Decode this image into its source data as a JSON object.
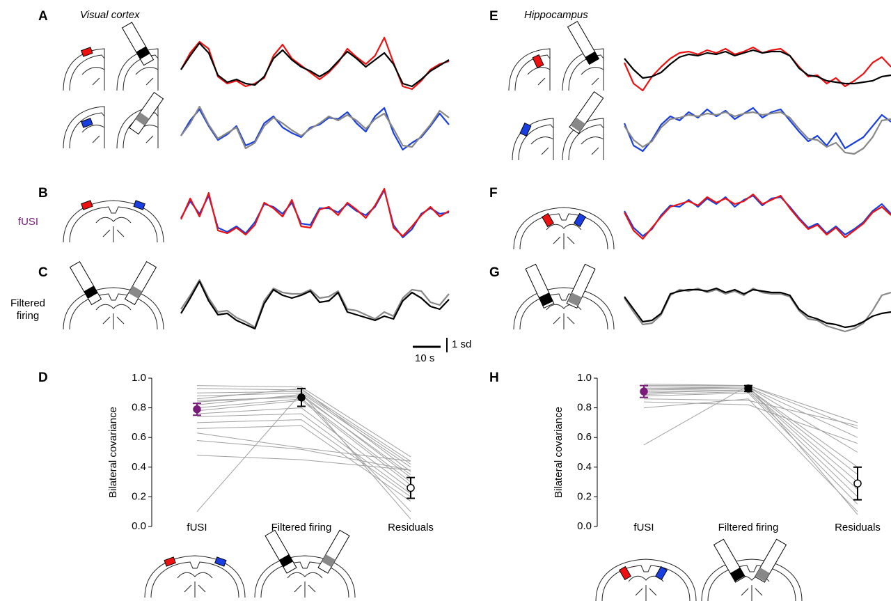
{
  "panel_labels": [
    "A",
    "B",
    "C",
    "D",
    "E",
    "F",
    "G",
    "H"
  ],
  "region_titles": [
    "Visual cortex",
    "Hippocampus"
  ],
  "row_labels": [
    "fUSI",
    "Filtered firing"
  ],
  "scale_bar": {
    "time": "10 s",
    "amplitude": "1 sd"
  },
  "traces": [
    [
      [
        {
          "color": "#ee1111",
          "values": [
            0,
            1.2,
            2,
            1.5,
            -0.5,
            -1,
            -0.8,
            -1.2,
            -1,
            -0.6,
            1,
            1.8,
            0.8,
            0.3,
            -0.2,
            -0.7,
            -0.2,
            0.5,
            1.5,
            0.9,
            0.4,
            1,
            2.3,
            0.5,
            -1.2,
            -1.4,
            -0.8,
            0,
            0.4,
            0.6
          ]
        },
        {
          "color": "#000000",
          "values": [
            0,
            1,
            1.9,
            1.2,
            -0.4,
            -0.9,
            -0.7,
            -1,
            -1.1,
            -0.5,
            0.8,
            1.4,
            0.7,
            0.2,
            -0.1,
            -0.5,
            -0.1,
            0.6,
            1.3,
            0.8,
            0.2,
            0.7,
            1.2,
            0.4,
            -1,
            -1.2,
            -0.7,
            -0.1,
            0.3,
            0.7
          ]
        }
      ],
      [
        {
          "color": "#1a3fe0",
          "values": [
            -0.5,
            0.6,
            1.4,
            0.2,
            -0.8,
            -0.4,
            0.2,
            -1.2,
            -0.9,
            0.4,
            0.9,
            0.1,
            -0.3,
            -0.6,
            0.1,
            0.3,
            0.8,
            0.7,
            1.2,
            0.4,
            -0.2,
            0.9,
            1.5,
            -0.3,
            -1.5,
            -1,
            -0.6,
            0.2,
            1.1,
            0.3
          ]
        },
        {
          "color": "#888888",
          "values": [
            -0.5,
            0.4,
            1.6,
            0.3,
            -0.7,
            -0.3,
            0.1,
            -1.4,
            -1,
            0.2,
            0.8,
            0.4,
            -0.1,
            -0.5,
            0,
            0.4,
            0.9,
            0.6,
            1,
            0.6,
            0,
            0.7,
            1.1,
            0,
            -1.2,
            -1.3,
            -0.5,
            0.3,
            1.3,
            0.8
          ]
        }
      ],
      [
        {
          "color": "#1a3fe0",
          "values": [
            0.1,
            1.3,
            0.4,
            1.7,
            -0.6,
            -0.9,
            -0.5,
            -1,
            -0.2,
            1.1,
            0.9,
            0.4,
            1.2,
            -0.3,
            -0.4,
            0.8,
            0.8,
            0.5,
            1.1,
            0.6,
            0.3,
            0.9,
            2.1,
            -0.4,
            -1.3,
            -0.7,
            0.4,
            0.8,
            0.4,
            0.5
          ]
        },
        {
          "color": "#ee1111",
          "values": [
            0,
            1.5,
            0.2,
            1.9,
            -0.8,
            -1,
            -0.6,
            -1.1,
            -0.4,
            1.2,
            0.8,
            0.2,
            1.4,
            -0.5,
            -0.6,
            0.7,
            0.9,
            0.3,
            1.2,
            0.7,
            0.1,
            1,
            2.2,
            -0.6,
            -1.2,
            -0.5,
            0.3,
            0.9,
            0.2,
            0.6
          ]
        }
      ],
      [
        {
          "color": "#888888",
          "values": [
            -0.2,
            0.8,
            1.9,
            0.6,
            -0.4,
            -0.3,
            -0.8,
            -1.1,
            -1.5,
            0.4,
            1.3,
            1,
            0.9,
            0.9,
            1.2,
            0.6,
            0.7,
            1.1,
            -0.2,
            -0.3,
            -0.6,
            -0.9,
            -0.4,
            -0.7,
            0.6,
            1.2,
            1.1,
            0.3,
            0.1,
            0.9
          ]
        },
        {
          "color": "#000000",
          "values": [
            -0.5,
            0.6,
            1.8,
            0.4,
            -0.6,
            -0.5,
            -1,
            -1.3,
            -1.6,
            0.2,
            1.2,
            0.8,
            0.6,
            0.8,
            1.1,
            0.3,
            0.4,
            1,
            -0.4,
            -0.6,
            -0.8,
            -1,
            -0.7,
            -0.9,
            0.4,
            1,
            0.6,
            0,
            -0.2,
            0.5
          ]
        }
      ]
    ],
    [
      [
        {
          "color": "#ee1111",
          "values": [
            0.5,
            -1,
            -1.5,
            -0.5,
            0.2,
            0.8,
            1.2,
            1.3,
            1.1,
            1.4,
            1.2,
            1.5,
            1.1,
            1.3,
            1.6,
            1.2,
            1.4,
            1.5,
            1,
            0.2,
            -0.5,
            -0.4,
            -1,
            -0.6,
            -1.2,
            -0.8,
            -0.3,
            0.5,
            0.9,
            0.2
          ]
        },
        {
          "color": "#000000",
          "values": [
            0.8,
            0,
            -0.6,
            -0.5,
            -0.2,
            0.4,
            0.9,
            1.1,
            1,
            1.2,
            1.1,
            1.3,
            1,
            1.2,
            1.4,
            1.2,
            1.3,
            1.3,
            1,
            0.1,
            -0.4,
            -0.5,
            -0.8,
            -0.9,
            -1,
            -1,
            -0.9,
            -0.8,
            -0.5,
            -0.4
          ]
        }
      ],
      [
        {
          "color": "#1a3fe0",
          "values": [
            0.4,
            -1.2,
            -1.6,
            -0.8,
            0.3,
            0.9,
            0.6,
            1.2,
            0.8,
            1.4,
            0.9,
            1.3,
            0.7,
            1.1,
            1.5,
            0.8,
            1.2,
            1.4,
            0.6,
            -0.2,
            -0.9,
            -0.5,
            -1.2,
            -0.3,
            -1.4,
            -1,
            -0.6,
            0.2,
            1,
            0.5
          ]
        },
        {
          "color": "#888888",
          "values": [
            0.2,
            -0.8,
            -1.3,
            -0.9,
            0.1,
            0.7,
            0.8,
            1,
            0.9,
            1.1,
            1,
            1.2,
            0.9,
            1.1,
            1.2,
            1,
            1.1,
            1.2,
            0.8,
            0,
            -0.7,
            -0.8,
            -1.3,
            -1,
            -1.7,
            -1.8,
            -1.4,
            -0.6,
            0.6,
            0.7
          ]
        }
      ],
      [
        {
          "color": "#1a3fe0",
          "values": [
            0.6,
            -0.6,
            -1.2,
            -0.7,
            0.3,
            1,
            0.9,
            1.4,
            0.9,
            1.5,
            1.1,
            1.6,
            0.9,
            1.4,
            1.7,
            1,
            1.5,
            1.6,
            0.9,
            0.1,
            -0.6,
            -0.3,
            -1,
            -0.5,
            -1.1,
            -0.7,
            -0.2,
            0.6,
            1.1,
            0.4
          ]
        },
        {
          "color": "#ee1111",
          "values": [
            0.5,
            -0.8,
            -1.4,
            -0.6,
            0.2,
            0.9,
            1.1,
            1.3,
            1,
            1.6,
            1.2,
            1.5,
            1.1,
            1.3,
            1.8,
            1.1,
            1.4,
            1.7,
            0.8,
            0,
            -0.7,
            -0.4,
            -1.1,
            -0.6,
            -1.3,
            -0.8,
            -0.3,
            0.5,
            0.9,
            0.3
          ]
        }
      ],
      [
        {
          "color": "#888888",
          "values": [
            0.6,
            -0.4,
            -1.3,
            -1.2,
            -0.6,
            0.8,
            1.2,
            1.1,
            1.3,
            1,
            1.2,
            0.9,
            1.1,
            0.8,
            1.3,
            1,
            0.9,
            0.9,
            0.7,
            -0.3,
            -0.9,
            -1,
            -1.4,
            -1.6,
            -1.8,
            -1.6,
            -1.2,
            -0.3,
            0.8,
            1
          ]
        },
        {
          "color": "#000000",
          "values": [
            0.7,
            -0.2,
            -1.1,
            -1,
            -0.5,
            0.9,
            1.1,
            1.2,
            1.2,
            1.1,
            1.3,
            1,
            1.2,
            0.9,
            1.2,
            1.1,
            1,
            1,
            0.8,
            -0.2,
            -0.7,
            -0.9,
            -1.2,
            -1.3,
            -1.5,
            -1.4,
            -1.1,
            -0.7,
            -0.5,
            -0.4
          ]
        }
      ]
    ]
  ],
  "chart_data": [
    {
      "type": "line",
      "y_label": "Bilateral covariance",
      "categories": [
        "fUSI",
        "Filtered firing",
        "Residuals"
      ],
      "category_colors": [
        "#7a1a7a",
        "#000000",
        "#000000"
      ],
      "ylim": [
        0,
        1
      ],
      "yticks": [
        {
          "value": 0,
          "label": "0.0"
        },
        {
          "value": 0.2,
          "label": "0.2"
        },
        {
          "value": 0.4,
          "label": "0.4"
        },
        {
          "value": 0.6,
          "label": "0.6"
        },
        {
          "value": 0.8,
          "label": "0.8"
        },
        {
          "value": 1,
          "label": "1.0"
        }
      ],
      "line_color": "#a0a0a0",
      "series": [
        {
          "values": [
            0.95,
            0.94,
            0.47
          ]
        },
        {
          "values": [
            0.93,
            0.92,
            0.44
          ]
        },
        {
          "values": [
            0.9,
            0.91,
            0.42
          ]
        },
        {
          "values": [
            0.88,
            0.9,
            0.4
          ]
        },
        {
          "values": [
            0.86,
            0.93,
            0.37
          ]
        },
        {
          "values": [
            0.84,
            0.88,
            0.35
          ]
        },
        {
          "values": [
            0.82,
            0.89,
            0.33
          ]
        },
        {
          "values": [
            0.8,
            0.86,
            0.3
          ]
        },
        {
          "values": [
            0.78,
            0.85,
            0.28
          ]
        },
        {
          "values": [
            0.76,
            0.8,
            0.25
          ]
        },
        {
          "values": [
            0.74,
            0.76,
            0.22
          ]
        },
        {
          "values": [
            0.7,
            0.72,
            0.2
          ]
        },
        {
          "values": [
            0.66,
            0.68,
            0.17
          ]
        },
        {
          "values": [
            0.63,
            0.53,
            0.44
          ]
        },
        {
          "values": [
            0.58,
            0.52,
            0.38
          ]
        },
        {
          "values": [
            0.48,
            0.45,
            0.38
          ]
        },
        {
          "values": [
            0.1,
            0.9,
            0.05
          ]
        },
        {
          "values": [
            0.85,
            0.87,
            0.1
          ]
        }
      ],
      "means": {
        "values": [
          0.79,
          0.87,
          0.26
        ],
        "errors": [
          0.04,
          0.06,
          0.07
        ],
        "fills": [
          "#7a1a7a",
          "#000000",
          "#ffffff"
        ],
        "strokes": [
          "#7a1a7a",
          "#000000",
          "#000000"
        ]
      }
    },
    {
      "type": "line",
      "y_label": "Bilateral covariance",
      "categories": [
        "fUSI",
        "Filtered firing",
        "Residuals"
      ],
      "category_colors": [
        "#7a1a7a",
        "#000000",
        "#000000"
      ],
      "ylim": [
        0,
        1
      ],
      "yticks": [
        {
          "value": 0,
          "label": "0.0"
        },
        {
          "value": 0.2,
          "label": "0.2"
        },
        {
          "value": 0.4,
          "label": "0.4"
        },
        {
          "value": 0.6,
          "label": "0.6"
        },
        {
          "value": 0.8,
          "label": "0.8"
        },
        {
          "value": 1,
          "label": "1.0"
        }
      ],
      "line_color": "#a0a0a0",
      "series": [
        {
          "values": [
            0.96,
            0.95,
            0.7
          ]
        },
        {
          "values": [
            0.95,
            0.95,
            0.66
          ]
        },
        {
          "values": [
            0.94,
            0.94,
            0.6
          ]
        },
        {
          "values": [
            0.93,
            0.94,
            0.5
          ]
        },
        {
          "values": [
            0.92,
            0.93,
            0.4
          ]
        },
        {
          "values": [
            0.91,
            0.92,
            0.3
          ]
        },
        {
          "values": [
            0.9,
            0.92,
            0.25
          ]
        },
        {
          "values": [
            0.89,
            0.91,
            0.2
          ]
        },
        {
          "values": [
            0.88,
            0.9,
            0.15
          ]
        },
        {
          "values": [
            0.86,
            0.85,
            0.68
          ]
        },
        {
          "values": [
            0.84,
            0.82,
            0.56
          ]
        },
        {
          "values": [
            0.8,
            0.86,
            0.1
          ]
        },
        {
          "values": [
            0.55,
            0.95,
            0.08
          ]
        },
        {
          "values": [
            0.93,
            0.93,
            0.35
          ]
        }
      ],
      "means": {
        "values": [
          0.91,
          0.93,
          0.29
        ],
        "errors": [
          0.04,
          0.02,
          0.11
        ],
        "fills": [
          "#7a1a7a",
          "#000000",
          "#ffffff"
        ],
        "strokes": [
          "#7a1a7a",
          "#000000",
          "#000000"
        ]
      }
    }
  ]
}
